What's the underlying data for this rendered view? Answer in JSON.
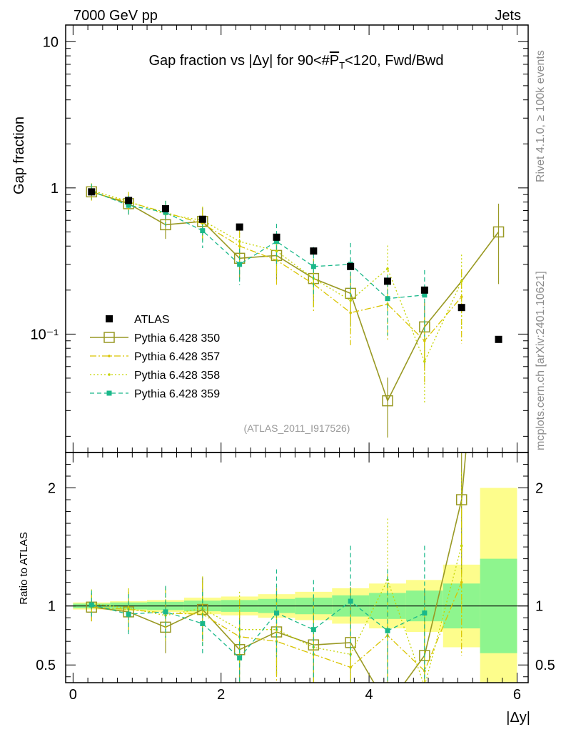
{
  "header": {
    "left": "7000 GeV pp",
    "right": "Jets"
  },
  "side": {
    "rivet": "Rivet 4.1.0, ≥ 100k events",
    "mcplots": "mcplots.cern.ch [arXiv:2401.10621]"
  },
  "colors": {
    "atlas": "#000000",
    "p350": "#999923",
    "p357": "#d9c400",
    "p358": "#c5d400",
    "p359": "#1ab88a",
    "band_stat": "#8ef58e",
    "band_tot": "#fdfd8c"
  },
  "chart_data": {
    "type": "line",
    "title": "Gap fraction vs |Δy| for 90<#P̅T<120, Fwd/Bwd",
    "title_parts": {
      "pre": "Gap fraction vs |Δy| for 90<#",
      "pt": "P",
      "sub": "T",
      "post": "<120, Fwd/Bwd"
    },
    "xlabel": "|Δy|",
    "ylabel": "Gap fraction",
    "ratio_ylabel": "Ratio to ATLAS",
    "watermark": "(ATLAS_2011_I917526)",
    "xlim": [
      -0.1,
      6.15
    ],
    "ylim": [
      0.0155,
      13
    ],
    "yscale": "log",
    "ratio_ylim": [
      0.35,
      2.3
    ],
    "x_ticks": [
      0,
      2,
      4,
      6
    ],
    "x_tick_labels": [
      "0",
      "2",
      "4",
      "6"
    ],
    "y_ticks": [
      0.1,
      1,
      10
    ],
    "y_tick_labels": [
      "10⁻¹",
      "1",
      "10"
    ],
    "ratio_ticks": [
      0.5,
      1,
      2
    ],
    "ratio_tick_labels": [
      "0.5",
      "1",
      "2"
    ],
    "x": [
      0.25,
      0.75,
      1.25,
      1.75,
      2.25,
      2.75,
      3.25,
      3.75,
      4.25,
      4.75,
      5.25,
      5.75
    ],
    "legend": [
      "ATLAS",
      "Pythia 6.428 350",
      "Pythia 6.428 357",
      "Pythia 6.428 358",
      "Pythia 6.428 359"
    ],
    "data": {
      "name": "ATLAS",
      "values": [
        0.94,
        0.82,
        0.72,
        0.61,
        0.54,
        0.46,
        0.37,
        0.29,
        0.23,
        0.2,
        0.152,
        0.092
      ]
    },
    "series": [
      {
        "name": "Pythia 6.428 350",
        "style": "solid-open-square",
        "values": [
          0.94,
          0.78,
          0.56,
          0.59,
          0.33,
          0.345,
          0.24,
          0.19,
          0.035,
          0.112,
          null,
          0.5
        ],
        "extra_x": [
          5.25
        ],
        "extra_values": [
          0.23
        ],
        "ratio": [
          0.99,
          0.95,
          0.82,
          0.97,
          0.63,
          0.78,
          0.67,
          0.69,
          0.15,
          0.58,
          1.9,
          5.4
        ]
      },
      {
        "name": "Pythia 6.428 357",
        "style": "dashdot",
        "values": [
          0.93,
          0.8,
          0.68,
          0.57,
          0.4,
          0.32,
          0.22,
          0.14,
          0.16,
          0.09,
          0.18,
          null
        ],
        "ratio": [
          0.99,
          0.97,
          0.94,
          0.93,
          0.74,
          0.7,
          0.59,
          0.48,
          0.75,
          0.45,
          1.2,
          null
        ]
      },
      {
        "name": "Pythia 6.428 358",
        "style": "dotted",
        "values": [
          0.96,
          0.81,
          0.66,
          0.6,
          0.43,
          0.37,
          0.24,
          0.17,
          0.28,
          0.065,
          0.23,
          null
        ],
        "ratio": [
          1.02,
          0.98,
          0.92,
          0.98,
          0.8,
          0.8,
          0.65,
          0.59,
          1.22,
          0.32,
          1.51,
          null
        ]
      },
      {
        "name": "Pythia 6.428 359",
        "style": "dashed-filled-square",
        "values": [
          0.95,
          0.76,
          0.68,
          0.51,
          0.3,
          0.43,
          0.29,
          0.3,
          0.175,
          0.185,
          null,
          null
        ],
        "ratio": [
          1.01,
          0.93,
          0.95,
          0.85,
          0.56,
          0.94,
          0.8,
          1.04,
          0.79,
          0.94,
          null,
          null
        ]
      }
    ],
    "ratio_band_inner": [
      0.02,
      0.03,
      0.035,
      0.045,
      0.05,
      0.06,
      0.07,
      0.09,
      0.11,
      0.13,
      0.19,
      0.4
    ],
    "ratio_band_outer": [
      0.03,
      0.04,
      0.05,
      0.07,
      0.08,
      0.1,
      0.12,
      0.15,
      0.19,
      0.22,
      0.35,
      1.0
    ]
  }
}
